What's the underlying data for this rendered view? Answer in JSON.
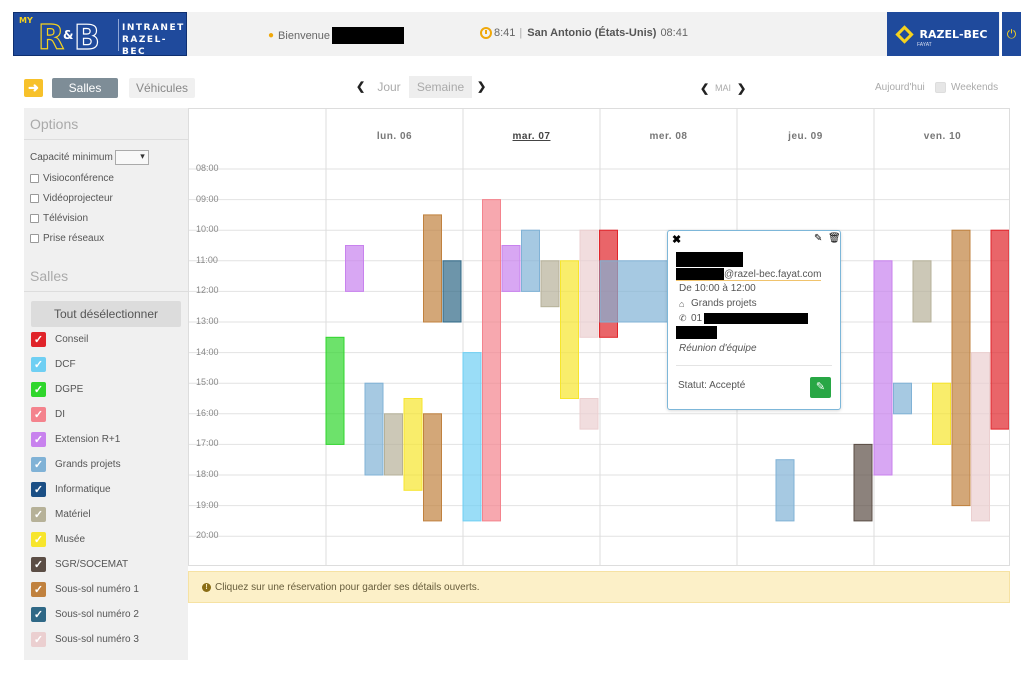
{
  "header": {
    "logo_my": "MY",
    "logo_line1": "INTRANET",
    "logo_line2": "RAZEL-BEC",
    "welcome": "Bienvenue",
    "time_partial": "8:41",
    "city": "San Antonio (États-Unis)",
    "city_time": "08:41",
    "brand": "RAZEL-BEC",
    "brand_sub": "FAYAT",
    "icons": {
      "user": "user-icon",
      "clock": "clock-icon",
      "power": "power-icon"
    }
  },
  "toolbar": {
    "salles": "Salles",
    "vehicules": "Véhicules",
    "jour": "Jour",
    "semaine": "Semaine",
    "month": "MAI",
    "today": "Aujourd'hui",
    "weekends": "Weekends"
  },
  "sidebar": {
    "options_title": "Options",
    "capacity_label": "Capacité minimum",
    "options": [
      "Visioconférence",
      "Vidéoprojecteur",
      "Télévision",
      "Prise réseaux"
    ],
    "salles_title": "Salles",
    "deselect": "Tout désélectionner",
    "rooms": [
      {
        "name": "Conseil",
        "color": "#e0242a",
        "checked": true
      },
      {
        "name": "DCF",
        "color": "#6fcff3",
        "checked": true
      },
      {
        "name": "DGPE",
        "color": "#2fd62c",
        "checked": true
      },
      {
        "name": "DI",
        "color": "#f4838d",
        "checked": true
      },
      {
        "name": "Extension R+1",
        "color": "#c882ee",
        "checked": true
      },
      {
        "name": "Grands projets",
        "color": "#80b2d6",
        "checked": true
      },
      {
        "name": "Informatique",
        "color": "#1b4f85",
        "checked": true
      },
      {
        "name": "Matériel",
        "color": "#b6b198",
        "checked": true
      },
      {
        "name": "Musée",
        "color": "#f7e52c",
        "checked": true
      },
      {
        "name": "SGR/SOCEMAT",
        "color": "#5b4d45",
        "checked": true
      },
      {
        "name": "Sous-sol numéro 1",
        "color": "#c0813e",
        "checked": true
      },
      {
        "name": "Sous-sol numéro 2",
        "color": "#2f6886",
        "checked": true
      },
      {
        "name": "Sous-sol numéro 3",
        "color": "#ebcfd0",
        "checked": true
      }
    ]
  },
  "calendar": {
    "days": [
      "lun. 06",
      "mar. 07",
      "mer. 08",
      "jeu. 09",
      "ven. 10"
    ],
    "current_day_index": 1,
    "times": [
      "08:00",
      "09:00",
      "10:00",
      "11:00",
      "12:00",
      "13:00",
      "14:00",
      "15:00",
      "16:00",
      "17:00",
      "18:00",
      "19:00",
      "20:00"
    ],
    "events": [
      {
        "day": 0,
        "lane": 0,
        "start": 13.5,
        "end": 17.0,
        "color": "#2fd62c"
      },
      {
        "day": 0,
        "lane": 1,
        "start": 10.5,
        "end": 12.0,
        "color": "#c882ee"
      },
      {
        "day": 0,
        "lane": 2,
        "start": 15.0,
        "end": 18.0,
        "color": "#80b2d6"
      },
      {
        "day": 0,
        "lane": 3,
        "start": 16.0,
        "end": 18.0,
        "color": "#b6b198"
      },
      {
        "day": 0,
        "lane": 4,
        "start": 15.5,
        "end": 18.5,
        "color": "#f7e52c"
      },
      {
        "day": 0,
        "lane": 5,
        "start": 9.5,
        "end": 13.0,
        "color": "#c0813e"
      },
      {
        "day": 0,
        "lane": 5,
        "start": 16.0,
        "end": 19.5,
        "color": "#c0813e"
      },
      {
        "day": 0,
        "lane": 6,
        "start": 11.0,
        "end": 13.0,
        "color": "#2f6886"
      },
      {
        "day": 1,
        "lane": 0,
        "start": 14.0,
        "end": 19.5,
        "color": "#6fcff3"
      },
      {
        "day": 1,
        "lane": 1,
        "start": 9.0,
        "end": 19.5,
        "color": "#f4838d"
      },
      {
        "day": 1,
        "lane": 2,
        "start": 10.5,
        "end": 12.0,
        "color": "#c882ee"
      },
      {
        "day": 1,
        "lane": 3,
        "start": 10.0,
        "end": 12.0,
        "color": "#80b2d6"
      },
      {
        "day": 1,
        "lane": 4,
        "start": 11.0,
        "end": 12.5,
        "color": "#b6b198"
      },
      {
        "day": 1,
        "lane": 5,
        "start": 11.0,
        "end": 15.5,
        "color": "#f7e52c"
      },
      {
        "day": 1,
        "lane": 6,
        "start": 10.0,
        "end": 13.5,
        "color": "#ebcfd0"
      },
      {
        "day": 1,
        "lane": 6,
        "start": 15.5,
        "end": 16.5,
        "color": "#ebcfd0"
      },
      {
        "day": 1,
        "lane": 7,
        "start": 10.0,
        "end": 13.5,
        "color": "#e0242a"
      },
      {
        "day": 2,
        "lane": 0,
        "start": 11.0,
        "end": 13.0,
        "color": "#80b2d6",
        "wide": true
      },
      {
        "day": 3,
        "lane": 2,
        "start": 17.5,
        "end": 19.5,
        "color": "#80b2d6"
      },
      {
        "day": 3,
        "lane": 6,
        "start": 17.0,
        "end": 19.5,
        "color": "#5b4d45"
      },
      {
        "day": 4,
        "lane": 0,
        "start": 11.0,
        "end": 18.0,
        "color": "#c882ee"
      },
      {
        "day": 4,
        "lane": 1,
        "start": 15.0,
        "end": 16.0,
        "color": "#80b2d6"
      },
      {
        "day": 4,
        "lane": 2,
        "start": 11.0,
        "end": 13.0,
        "color": "#b6b198"
      },
      {
        "day": 4,
        "lane": 3,
        "start": 15.0,
        "end": 17.0,
        "color": "#f7e52c"
      },
      {
        "day": 4,
        "lane": 4,
        "start": 10.0,
        "end": 19.0,
        "color": "#c0813e"
      },
      {
        "day": 4,
        "lane": 5,
        "start": 14.0,
        "end": 19.5,
        "color": "#ebcfd0"
      },
      {
        "day": 4,
        "lane": 6,
        "start": 10.0,
        "end": 16.5,
        "color": "#e0242a"
      },
      {
        "day": 4,
        "lane": 7,
        "start": 11.0,
        "end": 13.0,
        "color": "#5b4d45"
      }
    ]
  },
  "popup": {
    "email_domain": "@razel-bec.fayat.com",
    "time": "De 10:00 à 12:00",
    "room": "Grands projets",
    "phone_prefix": "01",
    "description": "Réunion d'équipe",
    "status": "Statut: Accepté"
  },
  "info": "Cliquez sur une réservation pour garder ses détails ouverts."
}
